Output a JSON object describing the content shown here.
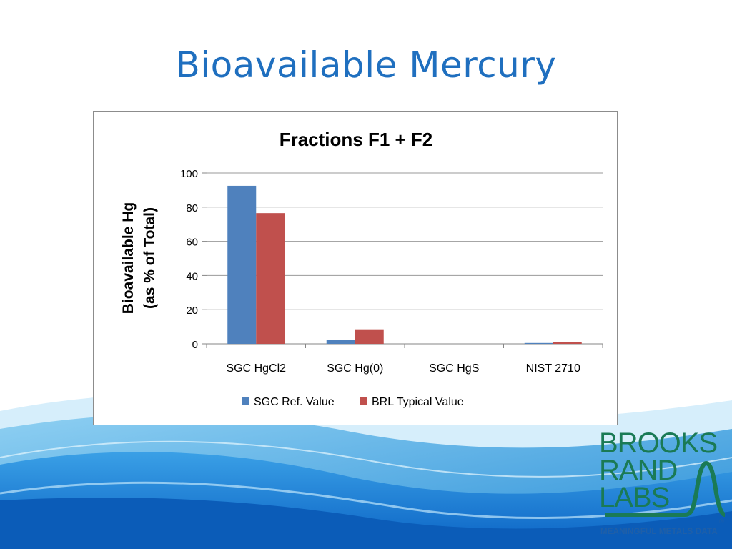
{
  "slide": {
    "title": "Bioavailable Mercury"
  },
  "colors": {
    "title": "#1f6fbf",
    "series1": "#4f81bd",
    "series2": "#c0504d",
    "logo_green": "#1a7a55",
    "logo_blue": "#1f5fa8"
  },
  "chart_data": {
    "type": "bar",
    "title": "Fractions F1 + F2",
    "ylabel_lines": [
      "Bioavailable Hg",
      "(as % of Total)"
    ],
    "xlabel": "",
    "categories": [
      "SGC HgCl2",
      "SGC Hg(0)",
      "SGC HgS",
      "NIST 2710"
    ],
    "series": [
      {
        "name": "SGC Ref. Value",
        "values": [
          92.5,
          2.5,
          0,
          0.5
        ]
      },
      {
        "name": "BRL Typical Value",
        "values": [
          76.5,
          8.5,
          0,
          1.0
        ]
      }
    ],
    "ylim": [
      0,
      100
    ],
    "yticks": [
      "0",
      "20",
      "40",
      "60",
      "80",
      "100"
    ],
    "grid": true,
    "legend_position": "bottom"
  },
  "logo": {
    "lines": [
      "BROOKS",
      "RAND",
      "LABS"
    ],
    "registered": "®",
    "tagline": "MEANINGFUL METALS DATA"
  }
}
